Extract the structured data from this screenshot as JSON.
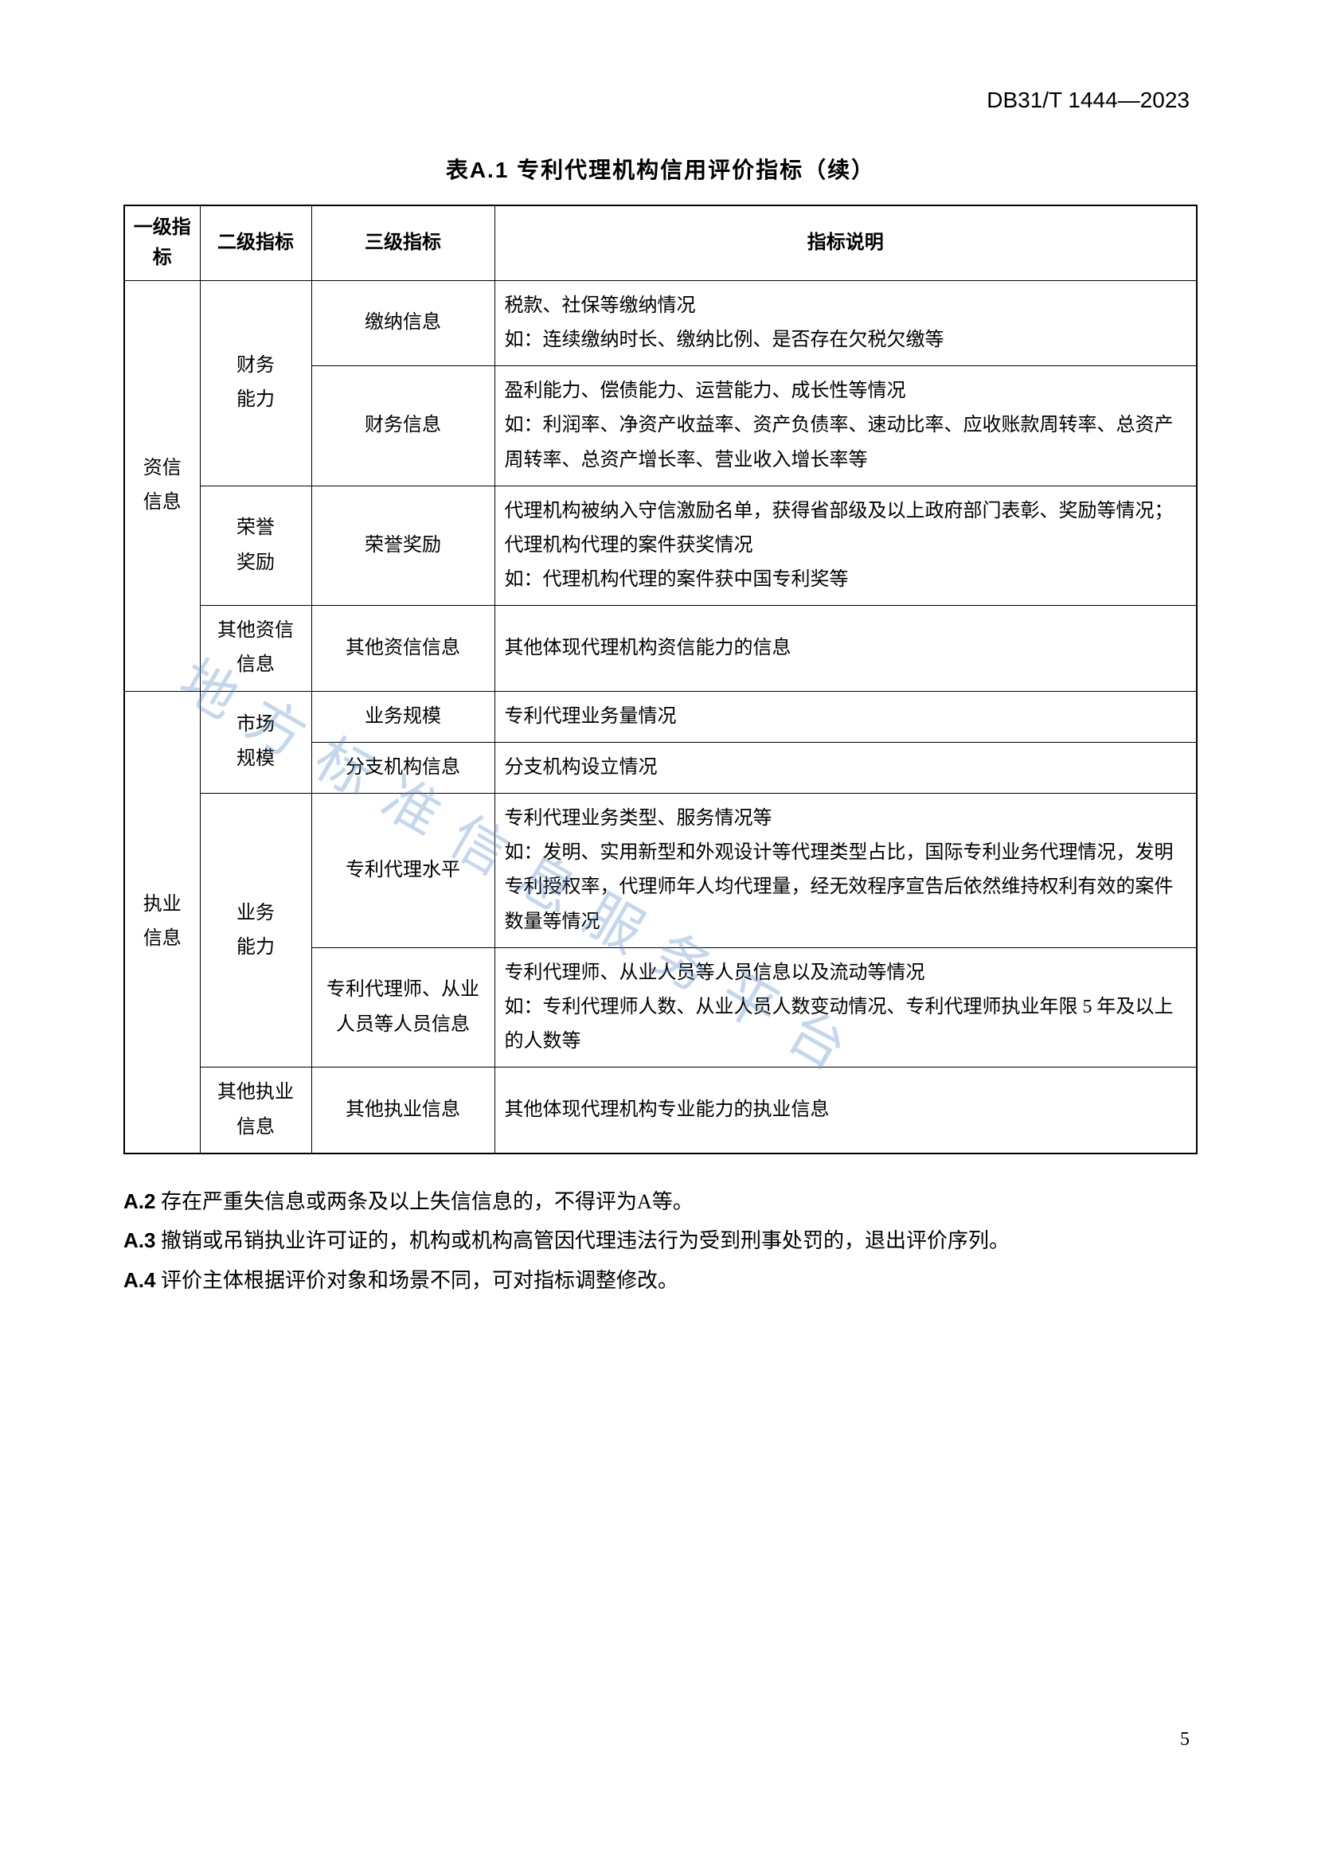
{
  "doc_id": "DB31/T 1444—2023",
  "table_caption": "表A.1  专利代理机构信用评价指标（续）",
  "headers": {
    "l1": "一级指标",
    "l2": "二级指标",
    "l3": "三级指标",
    "desc": "指标说明"
  },
  "groups": [
    {
      "l1": "资信信息",
      "subs": [
        {
          "l2": "财务能力",
          "rows": [
            {
              "l3": "缴纳信息",
              "desc": "税款、社保等缴纳情况\n如：连续缴纳时长、缴纳比例、是否存在欠税欠缴等"
            },
            {
              "l3": "财务信息",
              "desc": "盈利能力、偿债能力、运营能力、成长性等情况\n如：利润率、净资产收益率、资产负债率、速动比率、应收账款周转率、总资产周转率、总资产增长率、营业收入增长率等"
            }
          ]
        },
        {
          "l2": "荣誉奖励",
          "rows": [
            {
              "l3": "荣誉奖励",
              "desc": "代理机构被纳入守信激励名单，获得省部级及以上政府部门表彰、奖励等情况；代理机构代理的案件获奖情况\n如：代理机构代理的案件获中国专利奖等"
            }
          ]
        },
        {
          "l2": "其他资信信息",
          "rows": [
            {
              "l3": "其他资信信息",
              "desc": "其他体现代理机构资信能力的信息"
            }
          ]
        }
      ]
    },
    {
      "l1": "执业信息",
      "subs": [
        {
          "l2": "市场规模",
          "rows": [
            {
              "l3": "业务规模",
              "desc": "专利代理业务量情况"
            },
            {
              "l3": "分支机构信息",
              "desc": "分支机构设立情况"
            }
          ]
        },
        {
          "l2": "业务能力",
          "rows": [
            {
              "l3": "专利代理水平",
              "desc": "专利代理业务类型、服务情况等\n如：发明、实用新型和外观设计等代理类型占比，国际专利业务代理情况，发明专利授权率，代理师年人均代理量，经无效程序宣告后依然维持权利有效的案件数量等情况"
            },
            {
              "l3": "专利代理师、从业人员等人员信息",
              "desc": "专利代理师、从业人员等人员信息以及流动等情况\n如：专利代理师人数、从业人员人数变动情况、专利代理师执业年限 5 年及以上的人数等"
            }
          ]
        },
        {
          "l2": "其他执业信息",
          "rows": [
            {
              "l3": "其他执业信息",
              "desc": "其他体现代理机构专业能力的执业信息"
            }
          ]
        }
      ]
    }
  ],
  "notes": [
    {
      "label": "A.2",
      "text": " 存在严重失信息或两条及以上失信信息的，不得评为A等。"
    },
    {
      "label": "A.3",
      "text": " 撤销或吊销执业许可证的，机构或机构高管因代理违法行为受到刑事处罚的，退出评价序列。"
    },
    {
      "label": "A.4",
      "text": " 评价主体根据评价对象和场景不同，可对指标调整修改。"
    }
  ],
  "watermark": "地方标准信息服务平台",
  "page_number": "5"
}
